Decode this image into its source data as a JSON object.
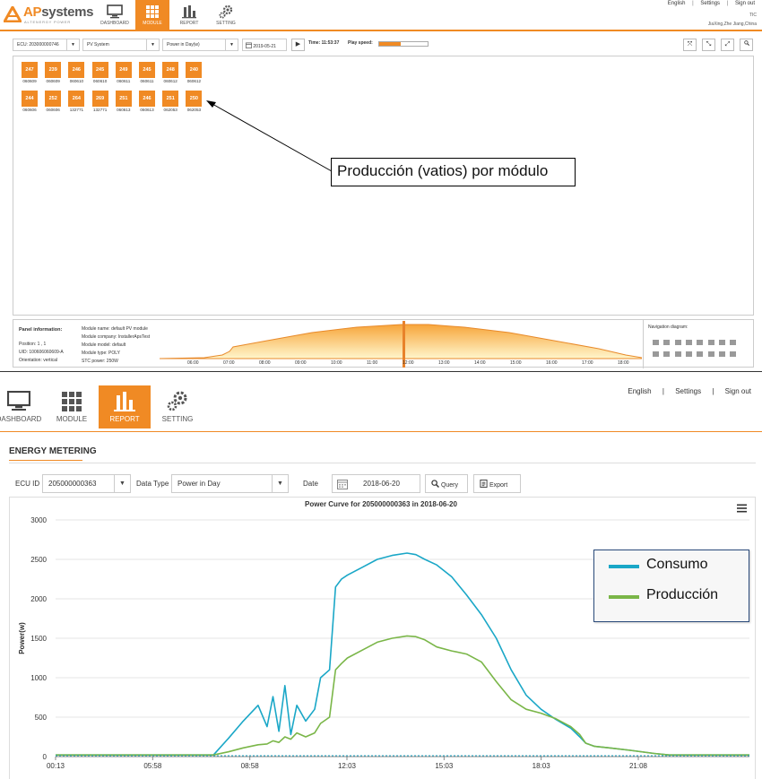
{
  "top": {
    "logo": {
      "brand_a": "AP",
      "brand_b": "systems",
      "tagline": "ALTENERGY POWER"
    },
    "nav": [
      {
        "label": "DASHBOARD",
        "icon": "monitor-icon"
      },
      {
        "label": "MODULE",
        "icon": "grid-icon",
        "active": true
      },
      {
        "label": "REPORT",
        "icon": "bar-chart-icon"
      },
      {
        "label": "SETTING",
        "icon": "gear-icon"
      }
    ],
    "links": {
      "english": "English",
      "sep": "|",
      "settings": "Settings",
      "signout": "Sign out"
    },
    "user": {
      "name": "TIC",
      "location": "JiaXing,Zhe Jiang,China"
    },
    "toolbar": {
      "ecu": "ECU: 203000000746",
      "system": "PV System",
      "mode": "Power in Day(w)",
      "date": "2019-05-21",
      "time": "Time: 11:53:37",
      "play_speed": "Play speed:",
      "play_speed_level": 0.45
    },
    "modules_row1": [
      {
        "value": "247",
        "sn": "060609"
      },
      {
        "value": "239",
        "sn": "060609"
      },
      {
        "value": "246",
        "sn": "060610"
      },
      {
        "value": "245",
        "sn": "060610"
      },
      {
        "value": "249",
        "sn": "060611"
      },
      {
        "value": "245",
        "sn": "060611"
      },
      {
        "value": "248",
        "sn": "060612"
      },
      {
        "value": "240",
        "sn": "060612"
      }
    ],
    "modules_row2": [
      {
        "value": "244",
        "sn": "060606"
      },
      {
        "value": "252",
        "sn": "060606"
      },
      {
        "value": "264",
        "sn": "132771"
      },
      {
        "value": "269",
        "sn": "132771"
      },
      {
        "value": "251",
        "sn": "060613"
      },
      {
        "value": "246",
        "sn": "060613"
      },
      {
        "value": "251",
        "sn": "062053"
      },
      {
        "value": "250",
        "sn": "062053"
      }
    ],
    "callout": "Producción (vatios) por módulo",
    "panel": {
      "title": "Panel information:",
      "position": "Position:   1 , 1",
      "uid": "UID:   100606060609-A",
      "orientation": "Orientation:   vertical",
      "module_name": "Module name:  default PV module",
      "module_company": "Module company:  InstallerApsTest",
      "module_model": "Module model:  default",
      "module_type": "Module type:  POLY",
      "stc_power": "STC power:  250W",
      "nav_diagram": "Navigation diagram:"
    },
    "mini_chart": {
      "ticks": [
        "06:00",
        "07:00",
        "08:00",
        "09:00",
        "10:00",
        "11:00",
        "12:00",
        "13:00",
        "14:00",
        "15:00",
        "16:00",
        "17:00",
        "18:00"
      ]
    }
  },
  "bottom": {
    "nav": [
      {
        "label": "DASHBOARD",
        "icon": "monitor-icon"
      },
      {
        "label": "MODULE",
        "icon": "grid-icon"
      },
      {
        "label": "REPORT",
        "icon": "bar-chart-icon",
        "active": true
      },
      {
        "label": "SETTING",
        "icon": "gear-icon"
      }
    ],
    "links": {
      "english": "English",
      "sep": "|",
      "settings": "Settings",
      "signout": "Sign out"
    },
    "section_title": "ENERGY METERING",
    "filters": {
      "ecu_label": "ECU ID",
      "ecu_value": "205000000363",
      "type_label": "Data Type",
      "type_value": "Power in Day",
      "date_label": "Date",
      "date_value": "2018-06-20",
      "query": "Query",
      "export": "Export"
    },
    "accent": "#f08a24"
  },
  "chart_data": {
    "type": "line",
    "title": "Power Curve for 205000000363 in 2018-06-20",
    "ylabel": "Power(w)",
    "xlabel": "",
    "ylim": [
      0,
      3000
    ],
    "yticks": [
      "0",
      "500",
      "1000",
      "1500",
      "2000",
      "2500",
      "3000"
    ],
    "xticks": [
      "00:13",
      "05:58",
      "08:58",
      "12:03",
      "15:03",
      "18:03",
      "21:08"
    ],
    "legend_placement": "right",
    "grid": true,
    "x": [
      0.2,
      5.5,
      6.0,
      6.5,
      7.0,
      7.3,
      7.5,
      7.7,
      7.9,
      8.1,
      8.3,
      8.6,
      8.9,
      9.1,
      9.4,
      9.6,
      9.8,
      10.0,
      10.5,
      11.0,
      11.5,
      12.0,
      12.3,
      12.6,
      13.0,
      13.5,
      14.0,
      14.5,
      15.0,
      15.5,
      16.0,
      16.5,
      17.0,
      17.5,
      17.8,
      18.0,
      18.3,
      18.8,
      19.5,
      20.3,
      20.8,
      21.5,
      23.5
    ],
    "series": [
      {
        "name": "Consumo",
        "color": "#1aa7c7",
        "values": [
          20,
          20,
          230,
          450,
          650,
          380,
          760,
          320,
          900,
          280,
          650,
          450,
          600,
          1000,
          1100,
          2150,
          2250,
          2300,
          2400,
          2500,
          2550,
          2580,
          2560,
          2500,
          2430,
          2280,
          2050,
          1800,
          1500,
          1100,
          780,
          600,
          470,
          360,
          250,
          170,
          130,
          110,
          80,
          40,
          20,
          20,
          20
        ]
      },
      {
        "name": "Producción",
        "color": "#7ab648",
        "values": [
          20,
          20,
          60,
          110,
          150,
          160,
          200,
          180,
          250,
          220,
          300,
          250,
          300,
          420,
          500,
          1100,
          1180,
          1250,
          1350,
          1450,
          1500,
          1530,
          1520,
          1480,
          1390,
          1340,
          1300,
          1200,
          950,
          720,
          600,
          550,
          480,
          380,
          280,
          170,
          130,
          110,
          80,
          40,
          20,
          20,
          20
        ]
      }
    ]
  }
}
